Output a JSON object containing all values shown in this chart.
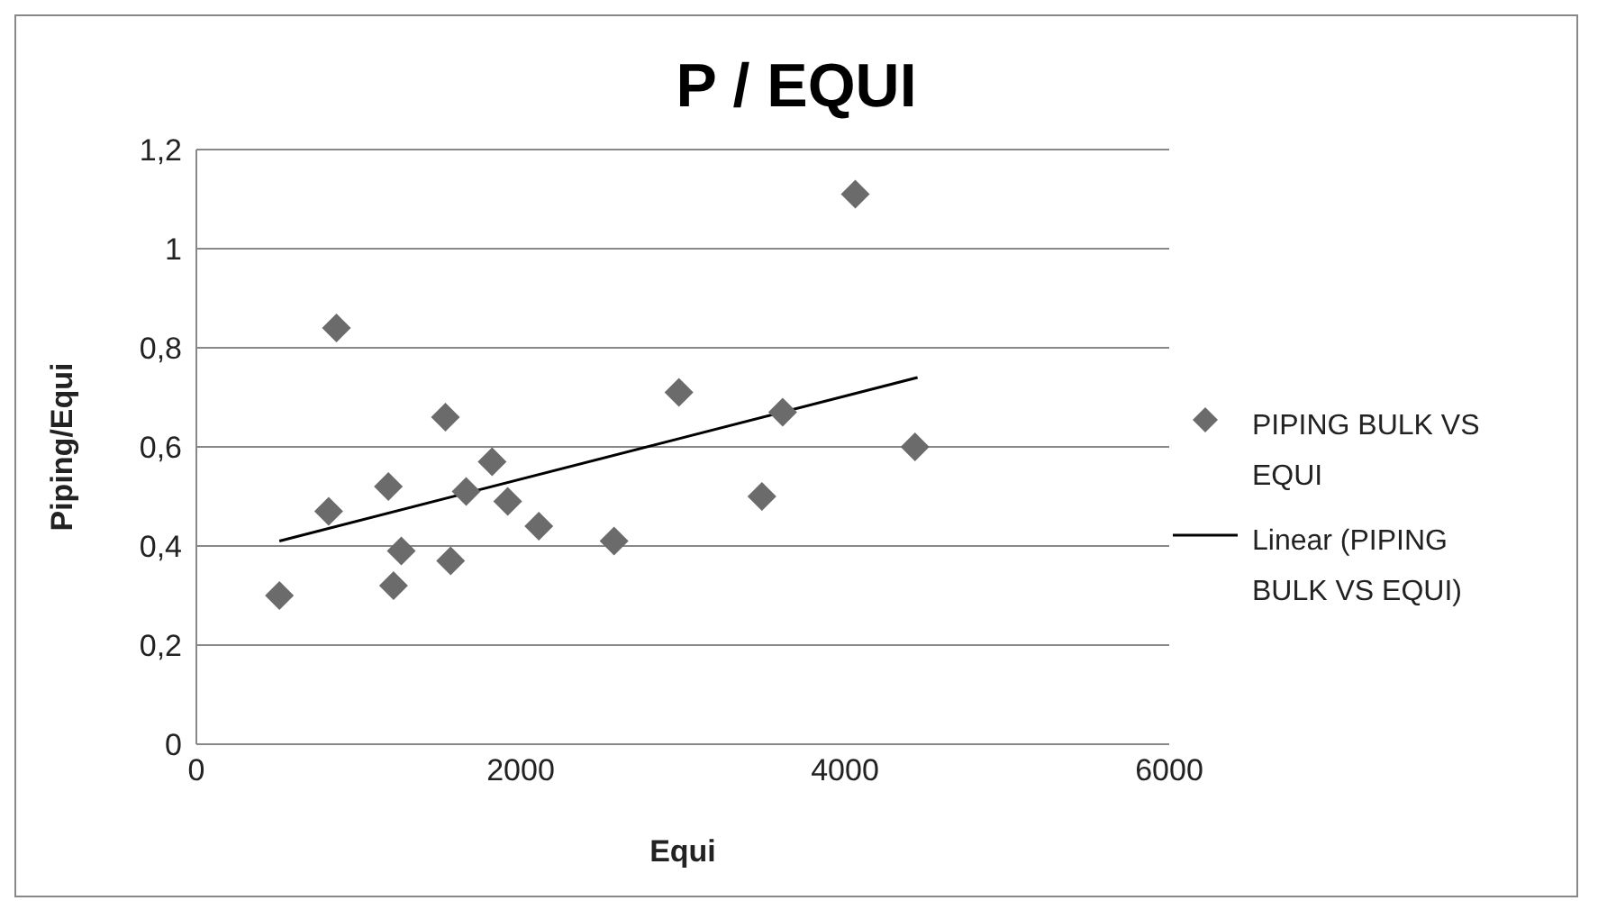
{
  "chart_data": {
    "type": "scatter",
    "title": "P / EQUI",
    "xlabel": "Equi",
    "ylabel": "Piping/Equi",
    "xlim": [
      0,
      6000
    ],
    "xticks": [
      0,
      2000,
      4000,
      6000
    ],
    "ylim": [
      0,
      1.2
    ],
    "yticks": [
      0,
      {
        "value": 0.2,
        "label": "0,2"
      },
      {
        "value": 0.4,
        "label": "0,4"
      },
      {
        "value": 0.6,
        "label": "0,6"
      },
      {
        "value": 0.8,
        "label": "0,8"
      },
      1,
      {
        "value": 1.2,
        "label": "1,2"
      }
    ],
    "grid": "y",
    "legend": "right",
    "series": [
      {
        "name": "PIPING BULK VS EQUI",
        "marker": "diamond",
        "color": "#6b6b6b",
        "x": [
          512,
          816,
          864,
          1184,
          1216,
          1264,
          1536,
          1568,
          1664,
          1824,
          1920,
          2112,
          2576,
          2976,
          3488,
          3616,
          4064,
          4432
        ],
        "values": [
          0.3,
          0.47,
          0.84,
          0.52,
          0.32,
          0.39,
          0.66,
          0.37,
          0.51,
          0.57,
          0.49,
          0.44,
          0.41,
          0.71,
          0.5,
          0.67,
          1.11,
          0.6
        ]
      },
      {
        "name": "Linear (PIPING BULK VS EQUI)",
        "type": "line",
        "marker": "none",
        "color": "#000000",
        "x": [
          512,
          4448
        ],
        "values": [
          0.41,
          0.74
        ]
      }
    ]
  }
}
